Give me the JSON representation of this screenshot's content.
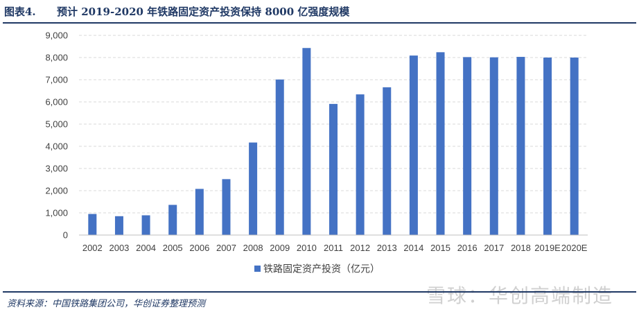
{
  "header": {
    "figure_label": "图表4.",
    "title": "预计 2019-2020 年铁路固定资产投资保持 8000 亿强度规模"
  },
  "footer": {
    "source": "资料来源：中国铁路集团公司，华创证券整理预测"
  },
  "watermark": {
    "text": "雪球：华创高端制造"
  },
  "colors": {
    "bar": "#4472c4",
    "grid": "#d9d9d9",
    "rule": "#1f3864"
  },
  "chart_data": {
    "type": "bar",
    "categories": [
      "2002",
      "2003",
      "2004",
      "2005",
      "2006",
      "2007",
      "2008",
      "2009",
      "2010",
      "2011",
      "2012",
      "2013",
      "2014",
      "2015",
      "2016",
      "2017",
      "2018",
      "2019E",
      "2020E"
    ],
    "series": [
      {
        "name": "铁路固定资产投资（亿元）",
        "values": [
          950,
          850,
          890,
          1360,
          2080,
          2520,
          4170,
          7010,
          8430,
          5910,
          6340,
          6660,
          8090,
          8240,
          8020,
          8010,
          8030,
          8000,
          8000
        ]
      }
    ],
    "y_ticks": [
      "0",
      "1,000",
      "2,000",
      "3,000",
      "4,000",
      "5,000",
      "6,000",
      "7,000",
      "8,000",
      "9,000"
    ],
    "ylim": [
      0,
      9000
    ],
    "grid": true,
    "legend_position": "bottom"
  }
}
